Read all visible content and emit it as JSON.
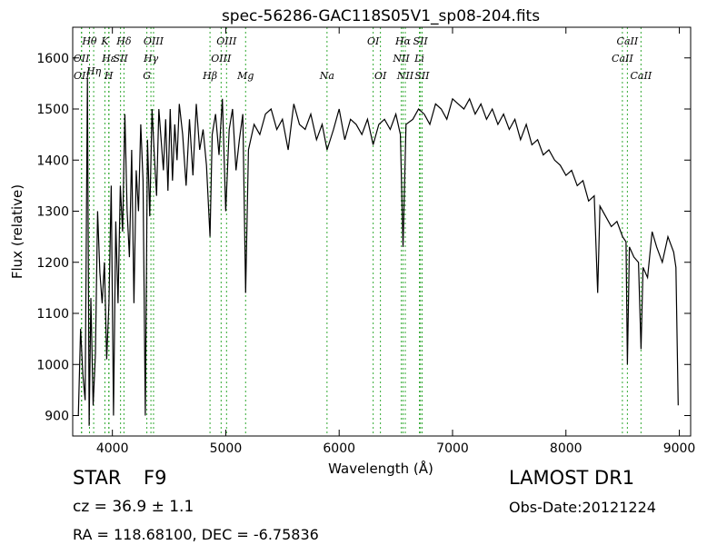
{
  "chart_data": {
    "type": "line",
    "title": "spec-56286-GAC118S05V1_sp08-204.fits",
    "xlabel": "Wavelength (Å)",
    "ylabel": "Flux (relative)",
    "xlim": [
      3650,
      9100
    ],
    "ylim": [
      860,
      1660
    ],
    "xticks": [
      4000,
      5000,
      6000,
      7000,
      8000,
      9000
    ],
    "yticks": [
      900,
      1000,
      1100,
      1200,
      1300,
      1400,
      1500,
      1600
    ],
    "grid": false,
    "line_color": "#000000",
    "marker_color": "#33aa33",
    "spectral_lines": [
      {
        "label": "Hθ",
        "wavelength": 3798,
        "row": 0
      },
      {
        "label": "K",
        "wavelength": 3934,
        "row": 0
      },
      {
        "label": "Hδ",
        "wavelength": 4102,
        "row": 0
      },
      {
        "label": "OIII",
        "wavelength": 4363,
        "row": 0
      },
      {
        "label": "OIII",
        "wavelength": 5007,
        "row": 0
      },
      {
        "label": "OI",
        "wavelength": 6300,
        "row": 0
      },
      {
        "label": "Hα",
        "wavelength": 6563,
        "row": 0
      },
      {
        "label": "SII",
        "wavelength": 6717,
        "row": 0
      },
      {
        "label": "CaII",
        "wavelength": 8542,
        "row": 0
      },
      {
        "label": "OII",
        "wavelength": 3727,
        "row": 1
      },
      {
        "label": "Hε",
        "wavelength": 3970,
        "row": 1
      },
      {
        "label": "SII",
        "wavelength": 4072,
        "row": 1
      },
      {
        "label": "Hγ",
        "wavelength": 4340,
        "row": 1
      },
      {
        "label": "OIII",
        "wavelength": 4959,
        "row": 1
      },
      {
        "label": "NII",
        "wavelength": 6548,
        "row": 1
      },
      {
        "label": "Li",
        "wavelength": 6708,
        "row": 1
      },
      {
        "label": "CaII",
        "wavelength": 8498,
        "row": 1
      },
      {
        "label": "Hη",
        "wavelength": 3835,
        "row": 1.5
      },
      {
        "label": "OII",
        "wavelength": 3729,
        "row": 2
      },
      {
        "label": "H",
        "wavelength": 3968,
        "row": 2
      },
      {
        "label": "G",
        "wavelength": 4304,
        "row": 2
      },
      {
        "label": "Hβ",
        "wavelength": 4861,
        "row": 2
      },
      {
        "label": "Mg",
        "wavelength": 5175,
        "row": 2
      },
      {
        "label": "Na",
        "wavelength": 5893,
        "row": 2
      },
      {
        "label": "OI",
        "wavelength": 6364,
        "row": 2
      },
      {
        "label": "NII",
        "wavelength": 6583,
        "row": 2
      },
      {
        "label": "SII",
        "wavelength": 6731,
        "row": 2
      },
      {
        "label": "CaII",
        "wavelength": 8662,
        "row": 2
      }
    ],
    "series": [
      {
        "x": [
          3700,
          3720,
          3740,
          3760,
          3780,
          3795,
          3810,
          3830,
          3850,
          3870,
          3890,
          3910,
          3930,
          3950,
          3970,
          3990,
          4010,
          4030,
          4050,
          4070,
          4090,
          4110,
          4130,
          4150,
          4170,
          4190,
          4210,
          4230,
          4250,
          4270,
          4290,
          4310,
          4330,
          4350,
          4370,
          4390,
          4410,
          4430,
          4450,
          4470,
          4490,
          4510,
          4530,
          4550,
          4570,
          4590,
          4620,
          4650,
          4680,
          4710,
          4740,
          4770,
          4800,
          4830,
          4861,
          4880,
          4910,
          4940,
          4970,
          5000,
          5030,
          5060,
          5090,
          5120,
          5150,
          5175,
          5200,
          5250,
          5300,
          5350,
          5400,
          5450,
          5500,
          5550,
          5600,
          5650,
          5700,
          5750,
          5800,
          5850,
          5893,
          5950,
          6000,
          6050,
          6100,
          6150,
          6200,
          6250,
          6300,
          6350,
          6400,
          6450,
          6500,
          6540,
          6563,
          6590,
          6650,
          6700,
          6750,
          6800,
          6850,
          6900,
          6950,
          7000,
          7050,
          7100,
          7150,
          7200,
          7250,
          7300,
          7350,
          7400,
          7450,
          7500,
          7550,
          7600,
          7650,
          7700,
          7750,
          7800,
          7850,
          7900,
          7950,
          8000,
          8050,
          8100,
          8150,
          8200,
          8250,
          8280,
          8300,
          8350,
          8400,
          8450,
          8500,
          8530,
          8542,
          8560,
          8600,
          8640,
          8662,
          8680,
          8720,
          8760,
          8800,
          8850,
          8900,
          8950,
          8970,
          8990
        ],
        "y": [
          900,
          1070,
          980,
          930,
          1560,
          880,
          1130,
          920,
          1020,
          1300,
          1180,
          1120,
          1200,
          1010,
          1120,
          1350,
          900,
          1280,
          1120,
          1350,
          1260,
          1490,
          1300,
          1210,
          1420,
          1120,
          1380,
          1300,
          1470,
          1360,
          900,
          1440,
          1290,
          1500,
          1410,
          1330,
          1500,
          1440,
          1380,
          1480,
          1340,
          1500,
          1360,
          1470,
          1400,
          1510,
          1450,
          1350,
          1480,
          1370,
          1510,
          1420,
          1460,
          1390,
          1250,
          1450,
          1490,
          1410,
          1520,
          1300,
          1460,
          1500,
          1380,
          1440,
          1490,
          1140,
          1420,
          1470,
          1450,
          1490,
          1500,
          1460,
          1480,
          1420,
          1510,
          1470,
          1460,
          1490,
          1440,
          1470,
          1420,
          1460,
          1500,
          1440,
          1480,
          1470,
          1450,
          1480,
          1430,
          1470,
          1480,
          1460,
          1490,
          1450,
          1230,
          1470,
          1480,
          1500,
          1490,
          1470,
          1510,
          1500,
          1480,
          1520,
          1510,
          1500,
          1520,
          1490,
          1510,
          1480,
          1500,
          1470,
          1490,
          1460,
          1480,
          1440,
          1470,
          1430,
          1440,
          1410,
          1420,
          1400,
          1390,
          1370,
          1380,
          1350,
          1360,
          1320,
          1330,
          1140,
          1310,
          1290,
          1270,
          1280,
          1250,
          1240,
          1000,
          1230,
          1210,
          1200,
          1030,
          1190,
          1170,
          1260,
          1230,
          1200,
          1250,
          1220,
          1190,
          920
        ]
      }
    ]
  },
  "info": {
    "object_type": "STAR",
    "subclass": "F9",
    "cz": "cz = 36.9  ± 1.1",
    "radec": "RA = 118.68100, DEC = -6.75836",
    "survey": "LAMOST DR1",
    "obs_date": "Obs-Date:20121224"
  }
}
